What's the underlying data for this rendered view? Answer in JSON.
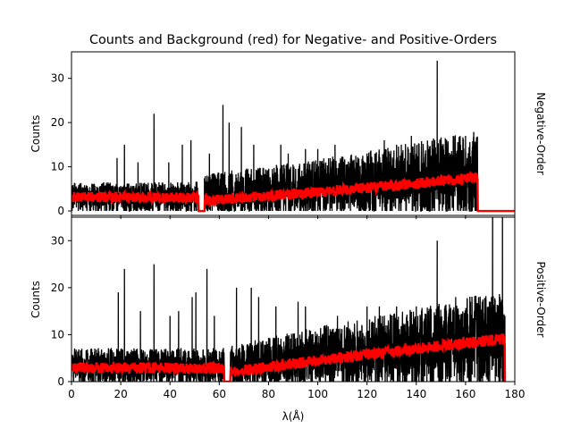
{
  "chart_data": {
    "type": "line",
    "title": "Counts and Background (red) for Negative- and Positive-Orders",
    "xlabel": "λ(Å)",
    "xlim": [
      0,
      180
    ],
    "xticks": [
      0,
      20,
      40,
      60,
      80,
      100,
      120,
      140,
      160,
      180
    ],
    "colors": {
      "counts": "#000000",
      "background": "#ff0000"
    },
    "panels": [
      {
        "id": "negative",
        "side_label": "Negative-Order",
        "ylabel": "Counts",
        "ylim": [
          -1,
          36
        ],
        "yticks": [
          0,
          10,
          20,
          30
        ],
        "data_end": 165,
        "red_flat_to": 180,
        "gaps": [
          [
            51.5,
            54
          ]
        ],
        "trend": {
          "bg": [
            [
              0,
              3.2
            ],
            [
              50,
              3.0
            ],
            [
              55,
              2.3
            ],
            [
              100,
              4.3
            ],
            [
              140,
              6.2
            ],
            [
              163,
              7.5
            ]
          ],
          "hi": [
            [
              0,
              5.0
            ],
            [
              50,
              5.0
            ],
            [
              55,
              6.5
            ],
            [
              100,
              9.0
            ],
            [
              140,
              12.0
            ],
            [
              163,
              14.0
            ]
          ],
          "lo": [
            [
              0,
              1.5
            ],
            [
              50,
              1.5
            ],
            [
              55,
              0.8
            ],
            [
              100,
              2.0
            ],
            [
              140,
              3.0
            ],
            [
              163,
              4.5
            ]
          ],
          "envb": [
            [
              0,
              1.0
            ],
            [
              50,
              1.0
            ],
            [
              55,
              0.5
            ],
            [
              100,
              1.5
            ],
            [
              140,
              2.0
            ],
            [
              163,
              3.0
            ]
          ]
        },
        "spikes": [
          [
            21.5,
            15
          ],
          [
            18.5,
            12
          ],
          [
            27,
            11
          ],
          [
            33.5,
            22
          ],
          [
            39.5,
            11
          ],
          [
            45,
            15
          ],
          [
            48.5,
            16
          ],
          [
            56,
            13
          ],
          [
            61.5,
            24
          ],
          [
            64,
            20
          ],
          [
            69,
            19
          ],
          [
            74,
            15
          ],
          [
            85,
            15
          ],
          [
            88,
            13
          ],
          [
            95,
            14
          ],
          [
            100,
            14
          ],
          [
            107,
            15
          ],
          [
            120,
            13
          ],
          [
            127,
            16
          ],
          [
            132,
            15
          ],
          [
            138,
            17
          ],
          [
            145,
            14
          ],
          [
            148.5,
            34
          ],
          [
            155,
            17
          ],
          [
            158,
            15
          ],
          [
            160,
            17
          ]
        ]
      },
      {
        "id": "positive",
        "side_label": "Positive-Order",
        "ylabel": "Counts",
        "ylim": [
          0,
          35
        ],
        "yticks": [
          0,
          10,
          20,
          30
        ],
        "data_end": 176,
        "red_flat_to": 176,
        "gaps": [
          [
            62,
            64.5
          ]
        ],
        "trend": {
          "bg": [
            [
              0,
              3.0
            ],
            [
              60,
              2.8
            ],
            [
              64.5,
              2.0
            ],
            [
              100,
              4.5
            ],
            [
              140,
              7.0
            ],
            [
              174,
              9.0
            ]
          ],
          "hi": [
            [
              0,
              5.5
            ],
            [
              60,
              5.5
            ],
            [
              64.5,
              6.0
            ],
            [
              100,
              9.0
            ],
            [
              140,
              12.0
            ],
            [
              174,
              15.0
            ]
          ],
          "lo": [
            [
              0,
              1.0
            ],
            [
              60,
              1.0
            ],
            [
              64.5,
              0.5
            ],
            [
              100,
              1.5
            ],
            [
              140,
              3.0
            ],
            [
              174,
              4.0
            ]
          ],
          "envb": [
            [
              0,
              0.8
            ],
            [
              60,
              0.8
            ],
            [
              64.5,
              0.4
            ],
            [
              100,
              1.2
            ],
            [
              140,
              2.0
            ],
            [
              174,
              3.5
            ]
          ]
        },
        "spikes": [
          [
            19,
            19
          ],
          [
            21.5,
            24
          ],
          [
            28,
            15
          ],
          [
            33.5,
            25
          ],
          [
            40,
            14
          ],
          [
            43.5,
            15
          ],
          [
            49,
            18
          ],
          [
            50.5,
            19
          ],
          [
            55,
            24
          ],
          [
            58,
            14
          ],
          [
            67,
            20
          ],
          [
            73,
            20
          ],
          [
            76,
            18
          ],
          [
            83,
            16
          ],
          [
            92,
            17
          ],
          [
            95,
            16
          ],
          [
            108,
            14
          ],
          [
            120,
            16
          ],
          [
            125,
            16
          ],
          [
            132,
            16
          ],
          [
            140,
            16
          ],
          [
            145,
            15
          ],
          [
            148.5,
            30
          ],
          [
            156,
            18
          ],
          [
            162,
            17
          ],
          [
            166,
            15
          ],
          [
            170,
            17
          ],
          [
            171,
            40
          ],
          [
            174,
            18
          ],
          [
            175,
            40
          ]
        ]
      }
    ]
  }
}
